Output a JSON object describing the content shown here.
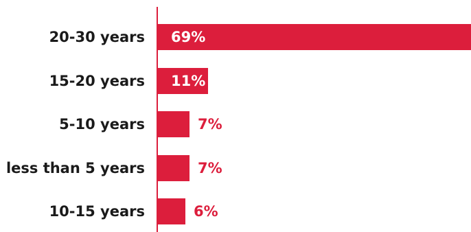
{
  "colors": {
    "bar": "#dc1e3c",
    "axis": "#dc1e3c",
    "label_outside": "#dc1e3c",
    "label_inside": "#ffffff",
    "category_text": "#1a1a1a"
  },
  "chart_data": {
    "type": "bar",
    "orientation": "horizontal",
    "categories": [
      "20-30 years",
      "15-20 years",
      "5-10 years",
      "less than 5 years",
      "10-15 years"
    ],
    "values": [
      69,
      11,
      7,
      7,
      6
    ],
    "value_labels": [
      "69%",
      "11%",
      "7%",
      "7%",
      "6%"
    ],
    "unit": "%",
    "xlim": [
      0,
      69
    ],
    "grid": false,
    "legend": "none"
  }
}
